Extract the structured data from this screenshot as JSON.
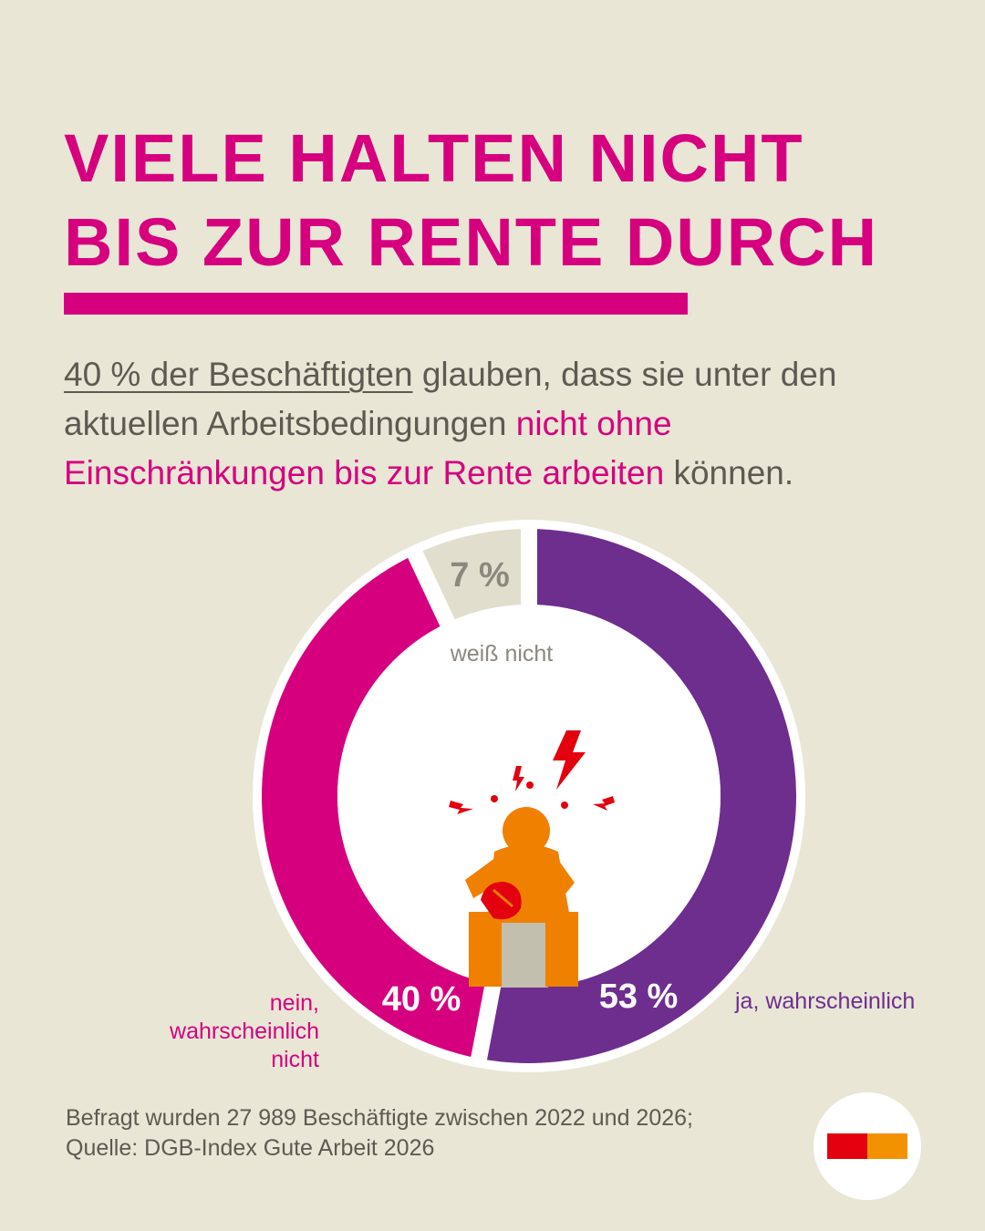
{
  "title": {
    "line1": "VIELE HALTEN NICHT",
    "line2": "BIS ZUR RENTE DURCH"
  },
  "intro": {
    "part1": "40 % der Beschäftigten",
    "part2": " glauben, dass sie unter den aktuellen Arbeitsbedingungen ",
    "part3": "nicht ohne Einschränkungen bis zur Rente arbeiten",
    "part4": " können."
  },
  "chart_data": {
    "type": "pie",
    "title": "",
    "slices": [
      {
        "label": "ja, wahrscheinlich",
        "value": 53,
        "value_label": "53 %",
        "color": "#6E2E8E"
      },
      {
        "label": "nein, wahrscheinlich nicht",
        "value": 40,
        "value_label": "40 %",
        "color": "#D6007F"
      },
      {
        "label": "weiß nicht",
        "value": 7,
        "value_label": "7 %",
        "color": "#E2DECD"
      }
    ]
  },
  "labels": {
    "nein": [
      "nein,",
      "wahrscheinlich",
      "nicht"
    ],
    "ja": "ja, wahrscheinlich",
    "weiss": "weiß nicht"
  },
  "footnote": {
    "line1": "Befragt wurden 27 989 Beschäftigte zwischen 2022 und 2026;",
    "line2": "Quelle: DGB-Index Gute Arbeit 2026"
  },
  "colors": {
    "accent": "#D6007F",
    "purple": "#6E2E8E",
    "background": "#E9E6D6",
    "figure": "#F08000",
    "lightning": "#E3000F"
  },
  "icons": [
    "stressed-person-icon",
    "lightning-icon",
    "dgb-logo-icon"
  ]
}
